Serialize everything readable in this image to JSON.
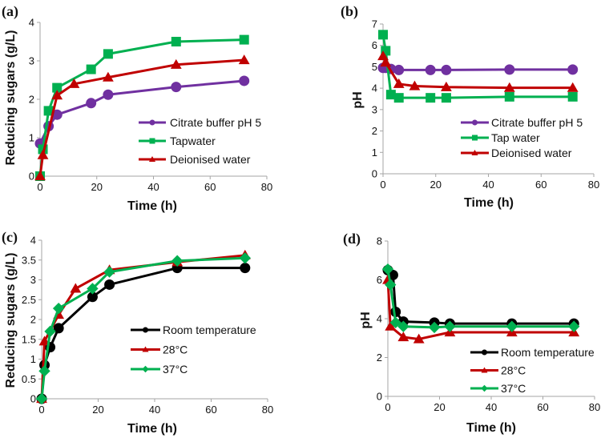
{
  "colors": {
    "purple": "#7030a0",
    "green": "#00b050",
    "red": "#c00000",
    "black": "#000000",
    "axis": "#a6a6a6"
  },
  "chart_data": [
    {
      "type": "line",
      "panel_label": "(a)",
      "xlabel": "Time (h)",
      "ylabel": "Reducing sugars (g/L)",
      "xlim": [
        0,
        80
      ],
      "ylim": [
        0,
        4
      ],
      "xticks": [
        "0",
        "20",
        "40",
        "60",
        "80"
      ],
      "yticks": [
        "0",
        "1",
        "2",
        "3",
        "4"
      ],
      "legend_position": "center-right",
      "series": [
        {
          "name": "Citrate buffer pH 5",
          "color": "purple",
          "marker": "circle",
          "x": [
            0,
            3,
            6,
            18,
            24,
            48,
            72
          ],
          "y": [
            0.85,
            1.3,
            1.6,
            1.9,
            2.12,
            2.32,
            2.48
          ]
        },
        {
          "name": "Tapwater",
          "color": "green",
          "marker": "square",
          "x": [
            0,
            1,
            3,
            6,
            18,
            24,
            48,
            72
          ],
          "y": [
            0,
            0.7,
            1.7,
            2.3,
            2.78,
            3.18,
            3.5,
            3.55
          ]
        },
        {
          "name": "Deionised water",
          "color": "red",
          "marker": "triangle",
          "x": [
            0,
            1,
            6,
            12,
            24,
            48,
            72
          ],
          "y": [
            0,
            0.55,
            2.1,
            2.4,
            2.57,
            2.9,
            3.02
          ]
        }
      ]
    },
    {
      "type": "line",
      "panel_label": "(b)",
      "xlabel": "Time (h)",
      "ylabel": "pH",
      "xlim": [
        0,
        80
      ],
      "ylim": [
        0,
        7
      ],
      "xticks": [
        "0",
        "20",
        "40",
        "60",
        "80"
      ],
      "yticks": [
        "0",
        "1",
        "2",
        "3",
        "4",
        "5",
        "6",
        "7"
      ],
      "legend_position": "center-right",
      "series": [
        {
          "name": "Citrate buffer pH 5",
          "color": "purple",
          "marker": "circle",
          "x": [
            0,
            1,
            3,
            6,
            18,
            24,
            48,
            72
          ],
          "y": [
            4.95,
            4.95,
            4.9,
            4.85,
            4.85,
            4.85,
            4.87,
            4.87
          ]
        },
        {
          "name": "Tap water",
          "color": "green",
          "marker": "square",
          "x": [
            0,
            1,
            3,
            6,
            18,
            24,
            48,
            72
          ],
          "y": [
            6.5,
            5.75,
            3.7,
            3.55,
            3.55,
            3.55,
            3.6,
            3.6
          ]
        },
        {
          "name": "Deionised water",
          "color": "red",
          "marker": "triangle",
          "x": [
            0,
            1,
            6,
            12,
            24,
            48,
            72
          ],
          "y": [
            5.5,
            5.2,
            4.2,
            4.1,
            4.05,
            4.02,
            4.02
          ]
        }
      ]
    },
    {
      "type": "line",
      "panel_label": "(c)",
      "xlabel": "Time (h)",
      "ylabel": "Reducing sugars (g/L)",
      "xlim": [
        0,
        80
      ],
      "ylim": [
        0,
        4
      ],
      "xticks": [
        "0",
        "20",
        "40",
        "60",
        "80"
      ],
      "yticks": [
        "0",
        "0.5",
        "1",
        "1.5",
        "2",
        "2.5",
        "3",
        "3.5",
        "4"
      ],
      "legend_position": "center-right",
      "series": [
        {
          "name": "Room temperature",
          "color": "black",
          "marker": "circle",
          "x": [
            0,
            1,
            3,
            6,
            18,
            24,
            48,
            72
          ],
          "y": [
            0,
            0.85,
            1.3,
            1.78,
            2.57,
            2.88,
            3.3,
            3.3
          ]
        },
        {
          "name": "28°C",
          "color": "red",
          "marker": "triangle",
          "x": [
            0,
            1,
            6,
            12,
            24,
            48,
            72
          ],
          "y": [
            0,
            1.45,
            2.12,
            2.78,
            3.25,
            3.45,
            3.62
          ]
        },
        {
          "name": "37°C",
          "color": "green",
          "marker": "diamond",
          "x": [
            0,
            1,
            3,
            6,
            18,
            24,
            48,
            72
          ],
          "y": [
            0,
            0.7,
            1.7,
            2.28,
            2.78,
            3.2,
            3.48,
            3.55
          ]
        }
      ]
    },
    {
      "type": "line",
      "panel_label": "(d)",
      "xlabel": "Time (h)",
      "ylabel": "pH",
      "xlim": [
        0,
        80
      ],
      "ylim": [
        0,
        8
      ],
      "xticks": [
        "0",
        "20",
        "40",
        "60",
        "80"
      ],
      "yticks": [
        "0",
        "2",
        "4",
        "6",
        "8"
      ],
      "legend_position": "center-right",
      "series": [
        {
          "name": "Room temperature",
          "color": "black",
          "marker": "circle",
          "x": [
            0,
            2,
            3,
            6,
            18,
            24,
            48,
            72
          ],
          "y": [
            6.5,
            6.25,
            4.35,
            3.85,
            3.8,
            3.75,
            3.75,
            3.75
          ]
        },
        {
          "name": "28°C",
          "color": "red",
          "marker": "triangle",
          "x": [
            0,
            1,
            6,
            12,
            24,
            48,
            72
          ],
          "y": [
            6.0,
            3.6,
            3.05,
            2.95,
            3.3,
            3.3,
            3.3
          ]
        },
        {
          "name": "37°C",
          "color": "green",
          "marker": "diamond",
          "x": [
            0,
            1,
            3,
            6,
            18,
            24,
            48,
            72
          ],
          "y": [
            6.55,
            5.75,
            3.8,
            3.6,
            3.55,
            3.6,
            3.6,
            3.6
          ]
        }
      ]
    }
  ]
}
